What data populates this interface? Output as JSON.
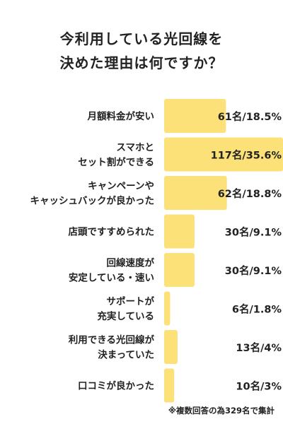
{
  "chart_data": {
    "type": "bar",
    "orientation": "horizontal",
    "title_lines": [
      "今利用している光回線を",
      "決めた理由は何ですか？"
    ],
    "categories": [
      [
        "月額料金が安い"
      ],
      [
        "スマホと",
        "セット割ができる"
      ],
      [
        "キャンペーンや",
        "キャッシュバックが良かった"
      ],
      [
        "店頭ですすめられた"
      ],
      [
        "回線速度が",
        "安定している・速い"
      ],
      [
        "サポートが",
        "充実している"
      ],
      [
        "利用できる光回線が",
        "決まっていた"
      ],
      [
        "口コミが良かった"
      ]
    ],
    "counts": [
      61,
      117,
      62,
      30,
      30,
      6,
      13,
      10
    ],
    "percentages": [
      18.5,
      35.6,
      18.8,
      9.1,
      9.1,
      1.8,
      4,
      3
    ],
    "value_labels": [
      "61名/18.5%",
      "117名/35.6%",
      "62名/18.8%",
      "30名/9.1%",
      "30名/9.1%",
      "6名/1.8%",
      "13名/4%",
      "10名/3%"
    ],
    "bar_color": "#fbe178",
    "note": "※複数回答の為329名で集計"
  }
}
